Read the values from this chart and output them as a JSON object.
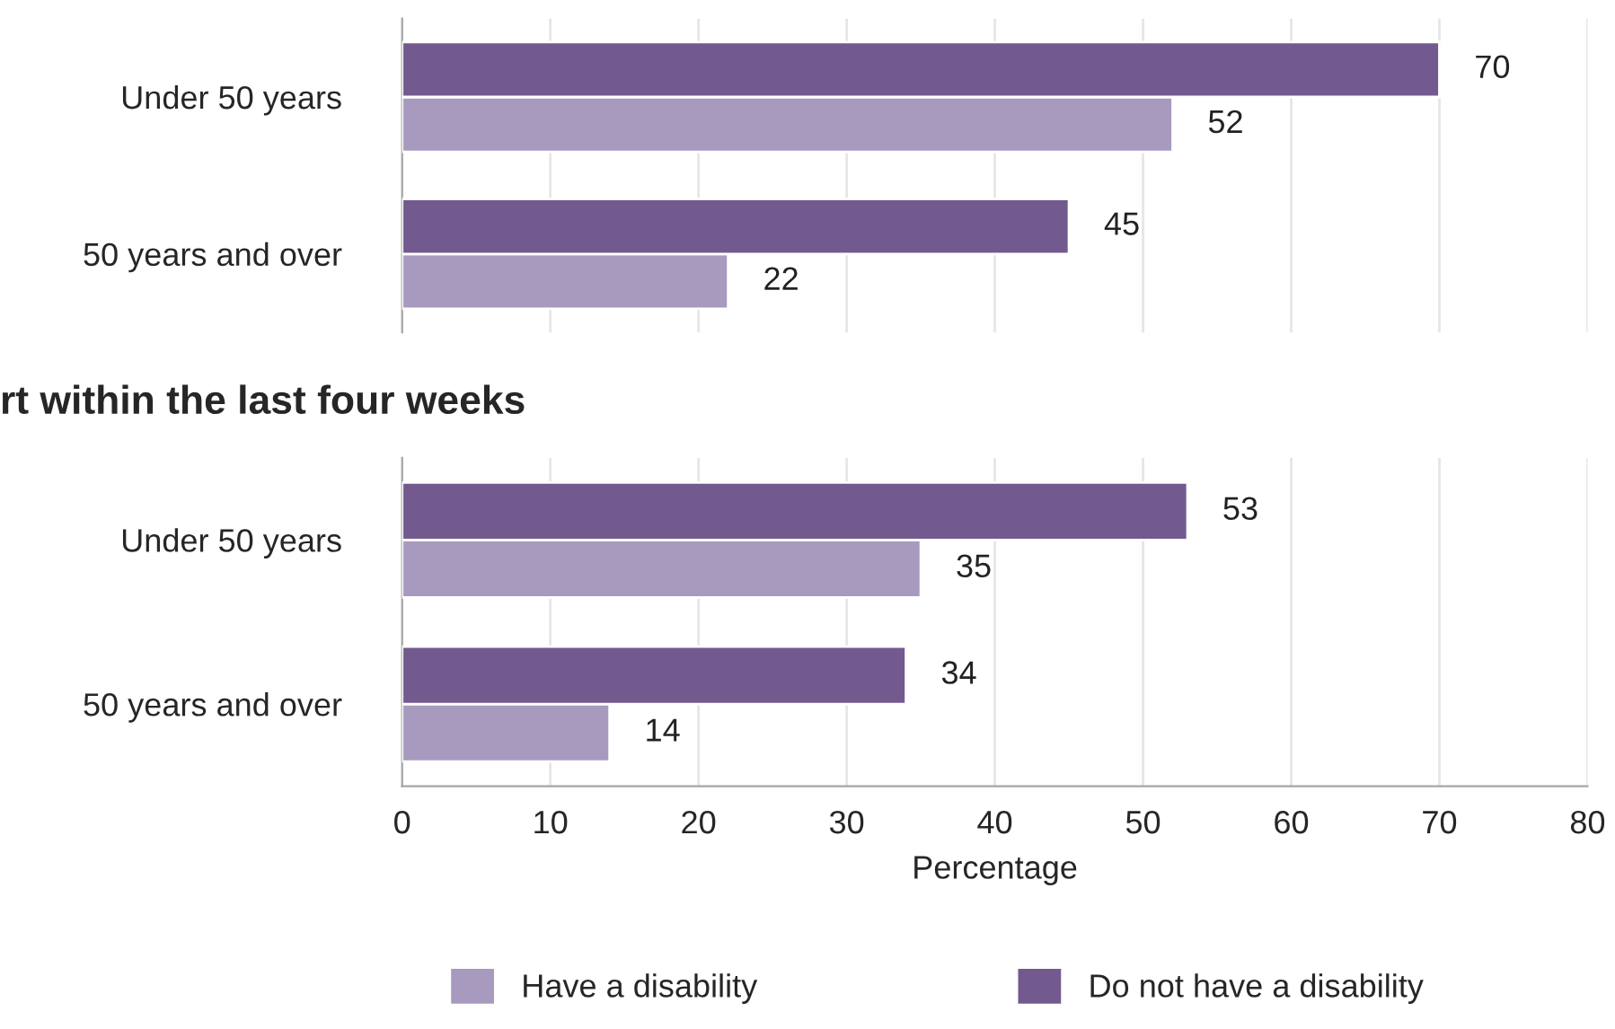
{
  "chart_data": [
    {
      "type": "bar",
      "orientation": "horizontal",
      "categories": [
        "Under 50 years",
        "50 years and over"
      ],
      "series": [
        {
          "name": "Have a disability",
          "color": "#a899bf",
          "values": [
            52,
            22
          ]
        },
        {
          "name": "Do not have a disability",
          "color": "#725a8f",
          "values": [
            70,
            45
          ]
        }
      ],
      "xlim": [
        0,
        80
      ],
      "xticks": [
        0,
        10,
        20,
        30,
        40,
        50,
        60,
        70,
        80
      ],
      "grid": "x",
      "data_labels": true,
      "tick_labels": "y",
      "legend": "bottom"
    },
    {
      "type": "bar",
      "orientation": "horizontal",
      "title": "rt within the last four weeks",
      "xlabel": "Percentage",
      "categories": [
        "Under 50 years",
        "50 years and over"
      ],
      "series": [
        {
          "color": "#a899bf",
          "values": [
            35,
            14
          ]
        },
        {
          "color": "#725a8f",
          "values": [
            53,
            34
          ]
        }
      ],
      "xlim": [
        0,
        80
      ],
      "xticks": [
        0,
        10,
        20,
        30,
        40,
        50,
        60,
        70,
        80
      ],
      "grid": "x",
      "data_labels": true
    }
  ]
}
